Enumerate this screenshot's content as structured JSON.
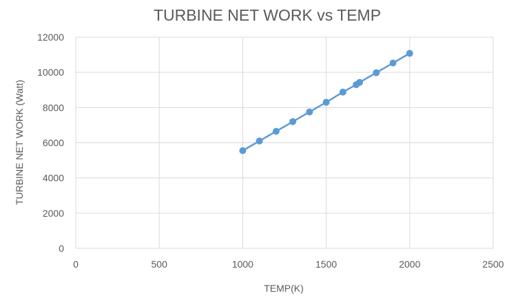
{
  "colors": {
    "series": "#5B9BD5",
    "grid": "#d9d9d9",
    "text": "#595959",
    "background": "#ffffff"
  },
  "chart_data": {
    "type": "scatter",
    "title": "TURBINE NET WORK  vs TEMP",
    "xlabel": "TEMP(K)",
    "ylabel": "TURBINE NET WORK (Watt)",
    "xlim": [
      0,
      2500
    ],
    "ylim": [
      0,
      12000
    ],
    "x_ticks": [
      0,
      500,
      1000,
      1500,
      2000,
      2500
    ],
    "y_ticks": [
      0,
      2000,
      4000,
      6000,
      8000,
      10000,
      12000
    ],
    "x_tick_labels": [
      "0",
      "500",
      "1000",
      "1500",
      "2000",
      "2500"
    ],
    "y_tick_labels": [
      "0",
      "2000",
      "4000",
      "6000",
      "8000",
      "10000",
      "12000"
    ],
    "grid": true,
    "legend": "none",
    "lines_connect_points": true,
    "series": [
      {
        "x": [
          1000,
          1100,
          1200,
          1300,
          1400,
          1500,
          1600,
          1680,
          1700,
          1800,
          1900,
          2000
        ],
        "y": [
          5550,
          6100,
          6650,
          7200,
          7750,
          8300,
          8880,
          9300,
          9430,
          9980,
          10530,
          11080
        ]
      }
    ]
  }
}
